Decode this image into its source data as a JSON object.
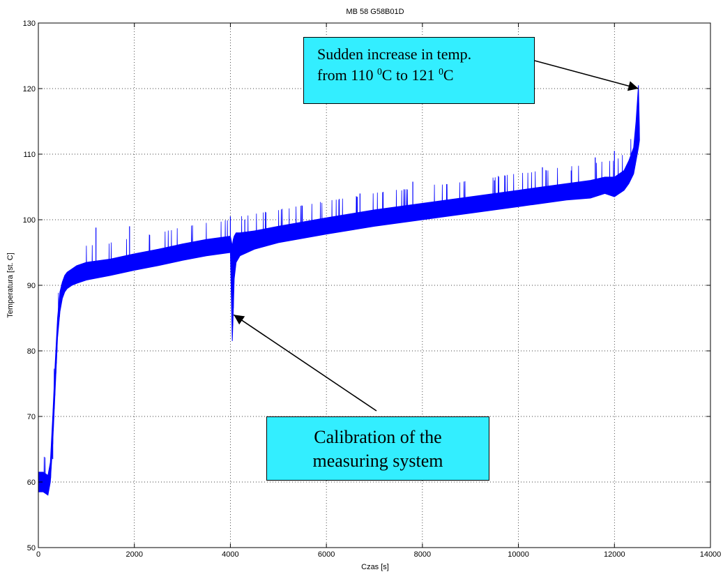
{
  "chart_data": {
    "type": "line",
    "title": "MB 58 G58B01D",
    "xlabel": "Czas [s]",
    "ylabel": "Temperatura [st. C]",
    "xlim": [
      0,
      14000
    ],
    "ylim": [
      50,
      130
    ],
    "grid": true,
    "x_ticks": [
      "0",
      "2000",
      "4000",
      "6000",
      "8000",
      "10000",
      "12000",
      "14000"
    ],
    "y_ticks": [
      "50",
      "60",
      "70",
      "80",
      "90",
      "100",
      "110",
      "120",
      "130"
    ],
    "series": [
      {
        "color": "#0000ff",
        "x": [
          0,
          100,
          200,
          250,
          300,
          350,
          400,
          450,
          500,
          550,
          600,
          700,
          800,
          1000,
          1500,
          2000,
          2500,
          3000,
          3500,
          4000,
          4040,
          4060,
          4080,
          4120,
          4200,
          4500,
          5000,
          6000,
          7000,
          8000,
          9000,
          10000,
          11000,
          11500,
          11800,
          12000,
          12200,
          12300,
          12400,
          12450,
          12500,
          12520
        ],
        "y_low": [
          58.5,
          58.5,
          58,
          60,
          66,
          74,
          82,
          86,
          88,
          89,
          89.5,
          90,
          90.3,
          90.8,
          91.5,
          92.3,
          93,
          93.8,
          94.5,
          95,
          81.5,
          86,
          91,
          93.5,
          94.5,
          95.5,
          96.5,
          97.8,
          99,
          100,
          101,
          102,
          103,
          103.3,
          104,
          103.5,
          104.5,
          105.5,
          107,
          109,
          111,
          112
        ],
        "y_high": [
          61.5,
          61.5,
          61,
          63,
          70,
          78,
          85,
          89,
          90.5,
          91.5,
          92,
          92.5,
          93,
          93.5,
          94,
          94.8,
          95.5,
          96.3,
          97,
          97.5,
          96,
          97,
          97.5,
          98,
          98,
          98.3,
          99,
          100.3,
          101.5,
          102.5,
          103.5,
          104.5,
          105.5,
          106,
          106.5,
          106.5,
          107.5,
          109,
          111,
          115,
          120.5,
          114
        ],
        "spikes": [
          [
            300,
            63.5
          ],
          [
            1200,
            98.8
          ],
          [
            1900,
            99
          ],
          [
            4000,
            100.5
          ],
          [
            4300,
            100
          ],
          [
            6700,
            104
          ],
          [
            7800,
            105.8
          ],
          [
            9500,
            106
          ],
          [
            10500,
            108
          ],
          [
            11100,
            107.5
          ],
          [
            11600,
            109.5
          ],
          [
            12000,
            110.5
          ],
          [
            12500,
            120.5
          ]
        ]
      }
    ],
    "annotations": [
      {
        "line1": "Sudden increase in temp.",
        "line2_a": "from 110 ",
        "sup1": "0",
        "line2_b": "C to 121 ",
        "sup2": "0",
        "line2_c": "C",
        "arrow_to": [
          12500,
          120
        ]
      },
      {
        "line1": "Calibration of the",
        "line2": "measuring system",
        "arrow_to": [
          4070,
          85.5
        ]
      }
    ]
  }
}
